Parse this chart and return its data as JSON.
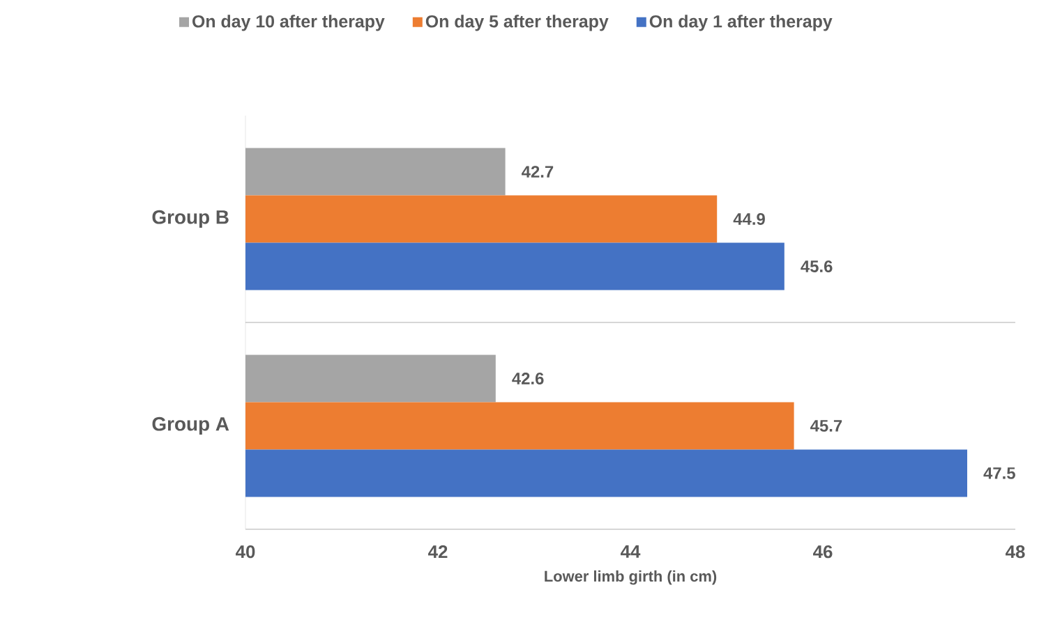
{
  "chart_data": {
    "type": "bar",
    "orientation": "horizontal",
    "xlabel": "Lower limb girth (in cm)",
    "categories": [
      "Group B",
      "Group A"
    ],
    "series": [
      {
        "name": "On day 10 after therapy",
        "color": "#a5a5a5",
        "values": [
          42.7,
          42.6
        ]
      },
      {
        "name": "On day 5 after therapy",
        "color": "#ed7d31",
        "values": [
          44.9,
          45.7
        ]
      },
      {
        "name": "On day 1 after therapy",
        "color": "#4472c4",
        "values": [
          45.6,
          47.5
        ]
      }
    ],
    "xlim": [
      40,
      48
    ],
    "xticks": [
      40,
      42,
      44,
      46,
      48
    ],
    "data_labels": true,
    "legend": "top",
    "grid": false
  }
}
